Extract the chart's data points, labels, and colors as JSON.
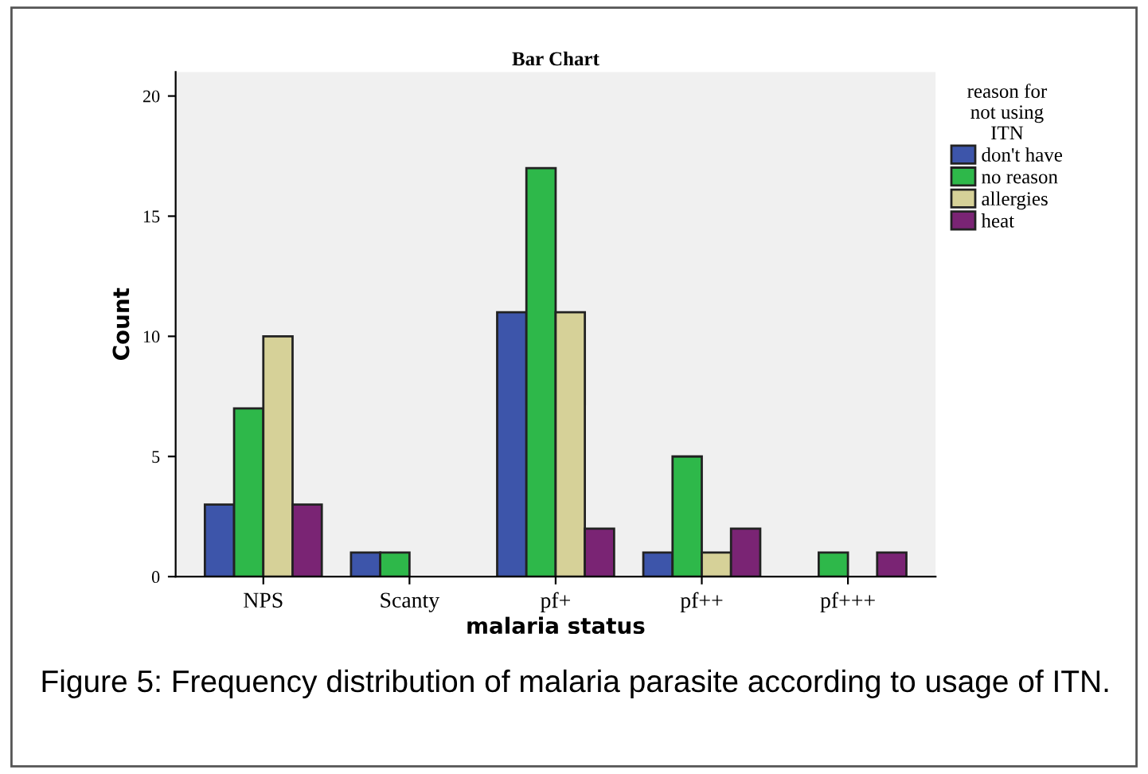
{
  "chart_data": {
    "type": "bar",
    "title": "Bar Chart",
    "xlabel": "malaria status",
    "ylabel": "Count",
    "legend_title": "reason for\nnot using\nITN",
    "categories": [
      "NPS",
      "Scanty",
      "pf+",
      "pf++",
      "pf+++"
    ],
    "series": [
      {
        "name": "don't have",
        "color": "#3d55aa",
        "values": [
          3,
          1,
          11,
          1,
          null
        ]
      },
      {
        "name": "no reason",
        "color": "#2eb84a",
        "values": [
          7,
          1,
          17,
          5,
          1
        ]
      },
      {
        "name": "allergies",
        "color": "#d6d198",
        "values": [
          10,
          null,
          11,
          1,
          null
        ]
      },
      {
        "name": "heat",
        "color": "#7a2474",
        "values": [
          3,
          null,
          2,
          2,
          1
        ]
      }
    ],
    "ylim": [
      0,
      21
    ],
    "yticks": [
      0,
      5,
      10,
      15,
      20
    ],
    "grid": false,
    "legend": "top right",
    "annotations": [
      "Figure 5: Frequency distribution of malaria parasite according to usage of ITN."
    ]
  }
}
